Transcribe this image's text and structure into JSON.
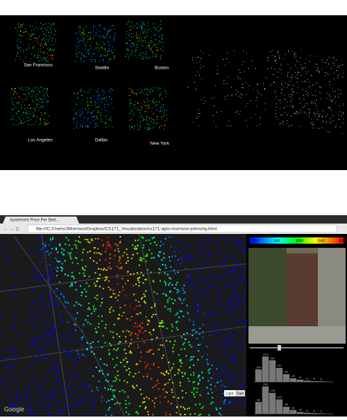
{
  "top_panel": {
    "cities": [
      "San Francisco",
      "Seattle",
      "Boston",
      "Los Angeles",
      "Dallas",
      "New York"
    ]
  },
  "browser": {
    "tab_title": "Apartment Price Per Bed...",
    "url": "file:///C:/Users/JMorrison/Dropbox/CS171_Visualization/cs171-apts-morrison-johns/ny.html"
  },
  "map": {
    "attribution": "Google",
    "buttons": [
      "Light",
      "Dark"
    ]
  },
  "color_scale": {
    "labels": [
      "300",
      "600",
      "1000",
      "1500",
      "2500"
    ]
  },
  "histograms": [
    {
      "counts": [
        104,
        213,
        181,
        117,
        64,
        29,
        17,
        9,
        5,
        3
      ]
    },
    {
      "counts": [
        98,
        230,
        176,
        120,
        58,
        31,
        14,
        8,
        4,
        2
      ]
    }
  ]
}
